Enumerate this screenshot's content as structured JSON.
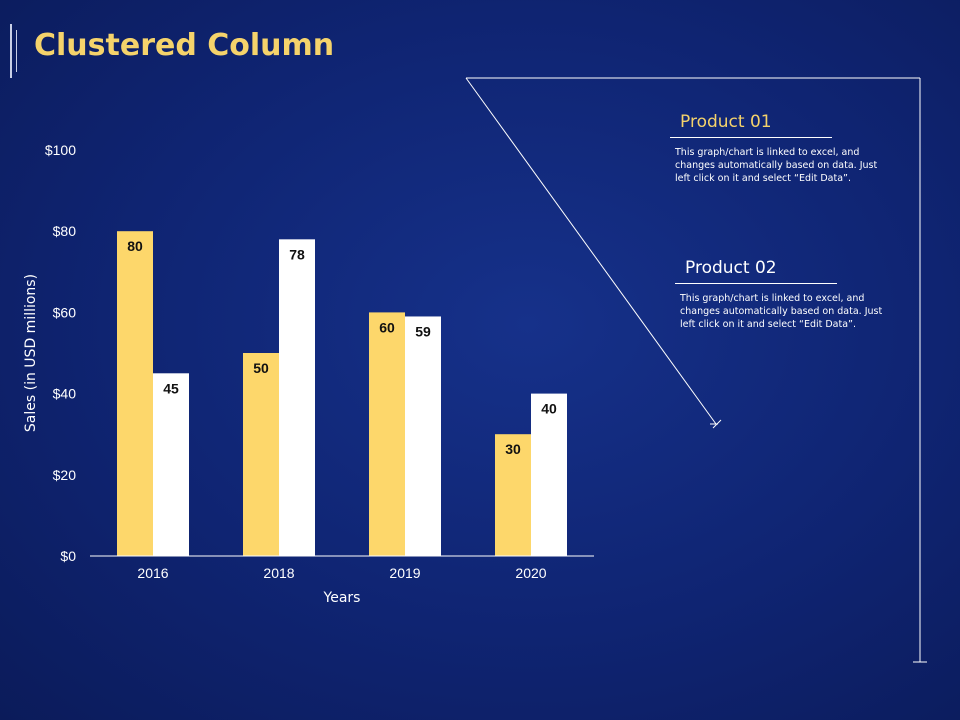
{
  "slide": {
    "title": "Clustered Column"
  },
  "products": [
    {
      "name": "Product 01",
      "description": "This graph/chart is linked to excel, and changes automatically based on data. Just left click on it and select “Edit Data”."
    },
    {
      "name": "Product 02",
      "description": "This graph/chart is linked to excel, and changes automatically based on data. Just left click on it and select “Edit Data”."
    }
  ],
  "chart_data": {
    "type": "bar",
    "title": "",
    "xlabel": "Years",
    "ylabel": "Sales (in USD millions)",
    "categories": [
      "2016",
      "2018",
      "2019",
      "2020"
    ],
    "series": [
      {
        "name": "Product 01",
        "values": [
          80,
          50,
          60,
          30
        ],
        "color": "#fdd76b"
      },
      {
        "name": "Product 02",
        "values": [
          45,
          78,
          59,
          40
        ],
        "color": "#ffffff"
      }
    ],
    "ylim": [
      0,
      100
    ],
    "yticks": [
      0,
      20,
      40,
      60,
      80,
      100
    ],
    "ytick_labels": [
      "$0",
      "$20",
      "$40",
      "$60",
      "$80",
      "$100"
    ],
    "grid": false
  },
  "colors": {
    "background": "#0f2472",
    "accent": "#f5d36b"
  }
}
